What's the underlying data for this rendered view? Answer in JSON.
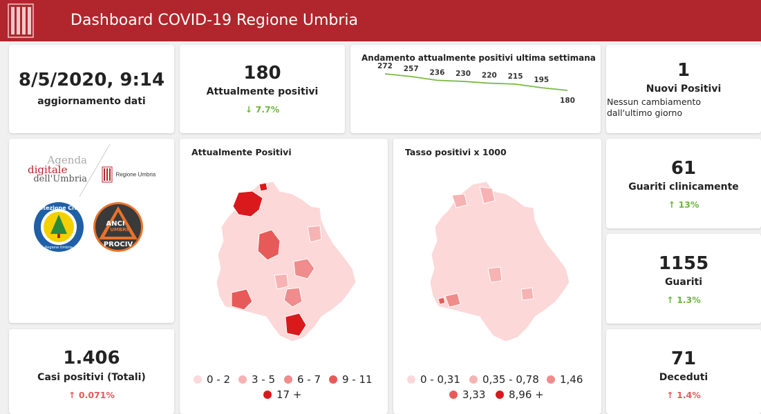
{
  "header": {
    "title": "Dashboard COVID-19 Regione Umbria",
    "logo_icon": "umbria-columns-icon",
    "bar_color": "#b1262c"
  },
  "update": {
    "datetime": "8/5/2020, 9:14",
    "label": "aggiornamento dati"
  },
  "attualmente_positivi": {
    "value": "180",
    "label": "Attualmente positivi",
    "trend": "7.7%",
    "trend_direction": "down"
  },
  "weekly_chart": {
    "title": "Andamento attualmente positivi ultima settimana"
  },
  "chart_data": {
    "type": "line",
    "title": "Andamento attualmente positivi ultima settimana",
    "values": [
      272,
      257,
      236,
      230,
      220,
      215,
      195,
      180
    ],
    "data_labels": [
      "272",
      "257",
      "236",
      "230",
      "220",
      "215",
      "195",
      "180"
    ],
    "grid": false,
    "line_color": "#7bb849"
  },
  "nuovi_positivi": {
    "value": "1",
    "label": "Nuovi Positivi",
    "note": "Nessun cambiamento dall'ultimo giorno"
  },
  "logos": {
    "agenda_line1": "Agenda",
    "agenda_line2": "digitale",
    "agenda_line3": "dell'Umbria",
    "regione": "Regione Umbria",
    "protezione_civile": "Protezione Civile",
    "protezione_civile_sub": "Regione Umbria",
    "anci_top": "ANCI",
    "anci_mid": "UMBRIA",
    "anci_bot": "PROCIV"
  },
  "map_positivi": {
    "title": "Attualmente Positivi",
    "legend": [
      {
        "label": "0 - 2",
        "color": "#fcd8d8"
      },
      {
        "label": "3 - 5",
        "color": "#f7b3b3"
      },
      {
        "label": "6 - 7",
        "color": "#f08c8c"
      },
      {
        "label": "9 - 11",
        "color": "#e85a5a"
      },
      {
        "label": "17 +",
        "color": "#d9191c"
      }
    ]
  },
  "map_tasso": {
    "title": "Tasso positivi x 1000",
    "legend": [
      {
        "label": "0 - 0,31",
        "color": "#fcd8d8"
      },
      {
        "label": "0,35 - 0,78",
        "color": "#f7b3b3"
      },
      {
        "label": "1,46",
        "color": "#f08c8c"
      },
      {
        "label": "3,33",
        "color": "#e85a5a"
      },
      {
        "label": "8,96 +",
        "color": "#d9191c"
      }
    ]
  },
  "casi_totali": {
    "value": "1.406",
    "label": "Casi positivi (Totali)",
    "trend": "0.071%",
    "trend_direction": "up"
  },
  "guariti_clinicamente": {
    "value": "61",
    "label": "Guariti clinicamente",
    "trend": "13%",
    "trend_direction": "up"
  },
  "guariti": {
    "value": "1155",
    "label": "Guariti",
    "trend": "1.3%",
    "trend_direction": "up"
  },
  "deceduti": {
    "value": "71",
    "label": "Deceduti",
    "trend": "1.4%",
    "trend_direction": "up"
  }
}
